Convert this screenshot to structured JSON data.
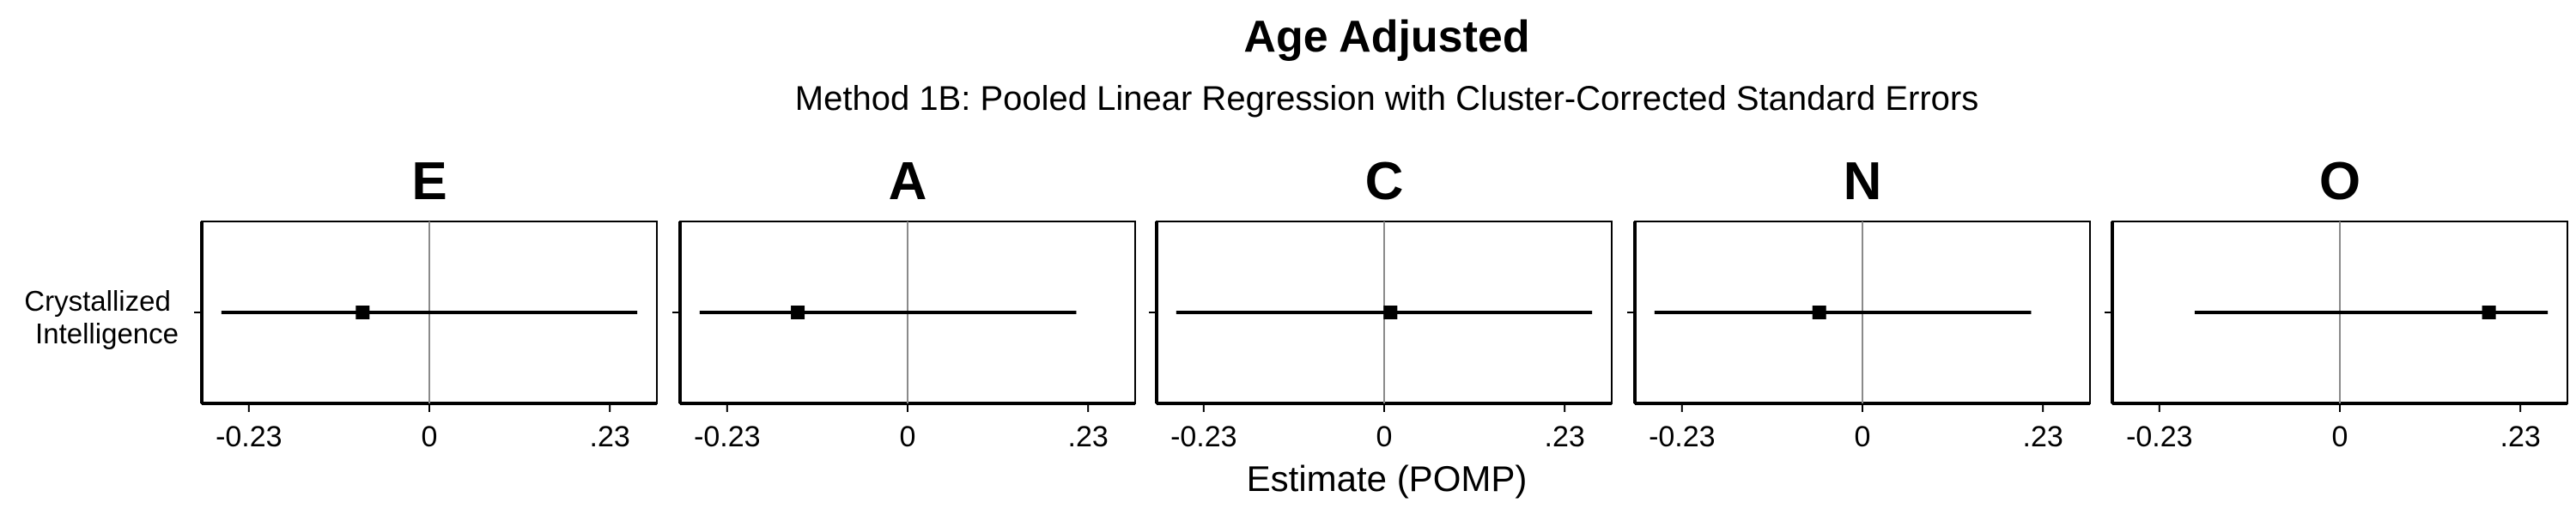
{
  "chart_data": {
    "type": "forest",
    "title": "Age Adjusted",
    "subtitle": "Method 1B: Pooled Linear Regression with Cluster-Corrected Standard Errors",
    "xlabel": "Estimate (POMP)",
    "ylabel": "",
    "y_category": "Crystallized Intelligence",
    "y_category_lines": [
      "Crystallized",
      "Intelligence"
    ],
    "xlim": [
      -0.29,
      0.29
    ],
    "x_ticks": [
      -0.23,
      0,
      0.23
    ],
    "x_tick_labels": [
      "-0.23",
      "0",
      ".23"
    ],
    "reference_line": 0,
    "panels": [
      {
        "label": "E",
        "estimate": -0.085,
        "ci_low": -0.265,
        "ci_high": 0.265
      },
      {
        "label": "A",
        "estimate": -0.14,
        "ci_low": -0.265,
        "ci_high": 0.215
      },
      {
        "label": "C",
        "estimate": 0.008,
        "ci_low": -0.265,
        "ci_high": 0.265
      },
      {
        "label": "N",
        "estimate": -0.055,
        "ci_low": -0.265,
        "ci_high": 0.215
      },
      {
        "label": "O",
        "estimate": 0.19,
        "ci_low": -0.185,
        "ci_high": 0.265
      }
    ]
  }
}
